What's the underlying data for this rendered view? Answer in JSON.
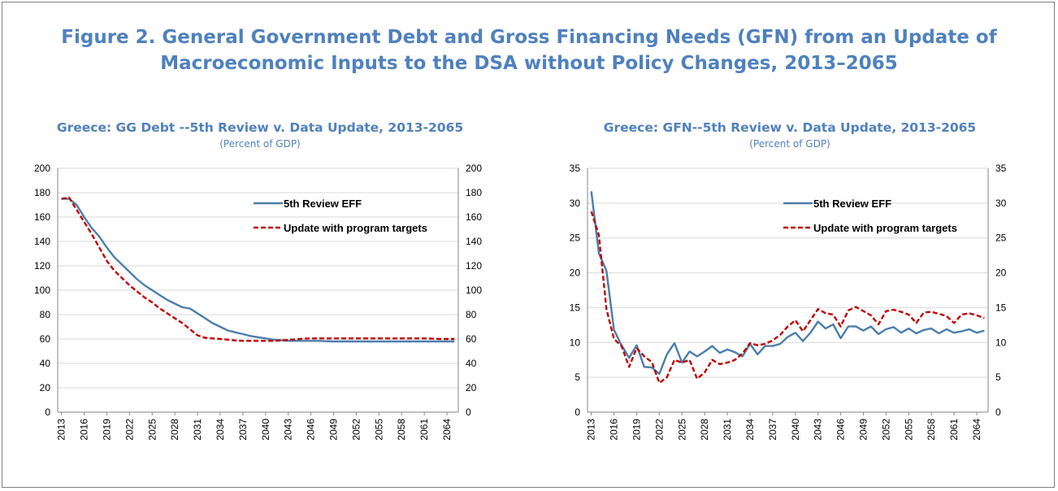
{
  "figure_title_line1": "Figure 2. General Government Debt and Gross Financing Needs (GFN) from an Update of",
  "figure_title_line2": "Macroeconomic Inputs to the DSA without Policy Changes, 2013–2065",
  "colors": {
    "title": "#4f81bd",
    "review": "#4a7eab",
    "update": "#c00000",
    "grid": "#d9d9d9",
    "axis": "#868686"
  },
  "chart_data": [
    {
      "type": "line",
      "title": "Greece: GG Debt --5th Review v. Data Update, 2013-2065",
      "subtitle": "(Percent of GDP)",
      "x_start": 2013,
      "x_end": 2065,
      "x_ticks": [
        "2013",
        "2016",
        "2019",
        "2022",
        "2025",
        "2028",
        "2031",
        "2034",
        "2037",
        "2040",
        "2043",
        "2046",
        "2049",
        "2052",
        "2055",
        "2058",
        "2061",
        "2064"
      ],
      "ylim": [
        0,
        200
      ],
      "y_ticks": [
        "0",
        "20",
        "40",
        "60",
        "80",
        "100",
        "120",
        "140",
        "160",
        "180",
        "200"
      ],
      "grid": true,
      "legend_position": "top-right",
      "series": [
        {
          "name": "5th Review EFF",
          "style": "solid",
          "values": [
            175,
            175,
            170,
            160,
            151,
            144,
            135,
            127,
            121,
            115,
            109,
            104,
            100,
            96,
            92,
            89,
            86,
            85,
            81,
            77,
            73,
            70,
            67,
            65.5,
            64,
            62.5,
            61.5,
            60.5,
            59.5,
            59,
            58.5,
            58.5,
            58.5,
            58.5,
            58.5,
            58.2,
            58,
            58,
            58,
            58,
            58,
            58,
            58,
            58,
            58,
            58,
            58,
            58,
            58,
            58,
            58,
            58,
            58
          ]
        },
        {
          "name": "Update with program targets",
          "style": "dashed",
          "values": [
            175,
            176,
            166,
            156,
            146,
            135,
            124,
            116,
            110,
            104,
            99,
            94,
            90,
            85,
            81,
            77,
            73,
            68,
            63,
            61,
            60.5,
            60,
            59.5,
            58.8,
            58.5,
            58.5,
            58.5,
            58.5,
            58.5,
            58.8,
            59.2,
            59.8,
            60.3,
            60.5,
            60.5,
            60.5,
            60.5,
            60.5,
            60.5,
            60.5,
            60.5,
            60.5,
            60.5,
            60.5,
            60.5,
            60.5,
            60.5,
            60.5,
            60.5,
            60.3,
            60,
            60,
            60
          ]
        }
      ]
    },
    {
      "type": "line",
      "title": "Greece: GFN--5th Review v. Data Update, 2013-2065",
      "subtitle": "(Percent of GDP)",
      "x_start": 2013,
      "x_end": 2065,
      "x_ticks": [
        "2013",
        "2016",
        "2019",
        "2022",
        "2025",
        "2028",
        "2031",
        "2034",
        "2037",
        "2040",
        "2043",
        "2046",
        "2049",
        "2052",
        "2055",
        "2058",
        "2061",
        "2064"
      ],
      "ylim": [
        0,
        35
      ],
      "y_ticks": [
        "0",
        "5",
        "10",
        "15",
        "20",
        "25",
        "30",
        "35"
      ],
      "grid": true,
      "legend_position": "top-right",
      "series": [
        {
          "name": "5th Review EFF",
          "style": "solid",
          "values": [
            31.7,
            22.8,
            20.3,
            11.8,
            9.6,
            7.8,
            9.6,
            6.5,
            6.4,
            5.5,
            8.3,
            9.9,
            7.1,
            8.7,
            8.0,
            8.7,
            9.5,
            8.5,
            9.0,
            8.6,
            8.0,
            9.8,
            8.3,
            9.5,
            9.5,
            9.8,
            10.8,
            11.4,
            10.2,
            11.4,
            13.0,
            12.0,
            12.6,
            10.6,
            12.3,
            12.3,
            11.7,
            12.3,
            11.2,
            11.9,
            12.2,
            11.4,
            12.0,
            11.3,
            11.8,
            12.0,
            11.3,
            11.9,
            11.4,
            11.6,
            11.9,
            11.4,
            11.7
          ]
        },
        {
          "name": "Update with program targets",
          "style": "dashed",
          "values": [
            28.8,
            25.4,
            14.8,
            10.5,
            9.5,
            6.5,
            9.2,
            8.0,
            7.2,
            4.2,
            5.0,
            7.5,
            7.1,
            7.5,
            4.8,
            5.7,
            7.5,
            6.9,
            7.1,
            7.5,
            8.4,
            9.9,
            9.6,
            9.8,
            10.3,
            11.1,
            12.3,
            13.2,
            11.6,
            13.2,
            14.8,
            14.2,
            14.0,
            12.3,
            14.6,
            15.1,
            14.5,
            13.9,
            12.6,
            14.5,
            14.7,
            14.4,
            14.0,
            12.8,
            14.3,
            14.4,
            14.1,
            13.8,
            12.8,
            14.0,
            14.2,
            13.9,
            13.5
          ]
        }
      ]
    }
  ]
}
